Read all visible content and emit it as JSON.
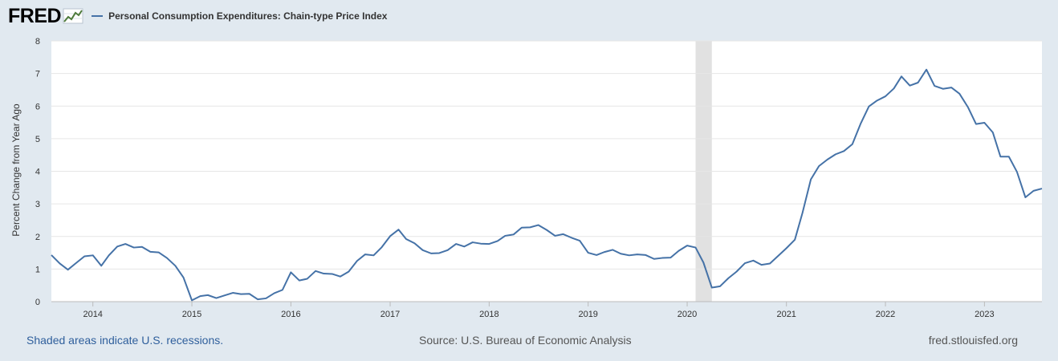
{
  "header": {
    "logo_text": "FRED",
    "legend_label": "Personal Consumption Expenditures: Chain-type Price Index",
    "series_color": "#4572a7"
  },
  "footer": {
    "recession_note": "Shaded areas indicate U.S. recessions.",
    "source": "Source: U.S. Bureau of Economic Analysis",
    "site": "fred.stlouisfed.org"
  },
  "chart_data": {
    "type": "line",
    "title": "",
    "xlabel": "",
    "ylabel": "Percent Change from Year Ago",
    "xlim": [
      "2013-08-01",
      "2023-08-01"
    ],
    "ylim": [
      0,
      8
    ],
    "yticks": [
      0,
      1,
      2,
      3,
      4,
      5,
      6,
      7,
      8
    ],
    "xticks": [
      "2014",
      "2015",
      "2016",
      "2017",
      "2018",
      "2019",
      "2020",
      "2021",
      "2022",
      "2023"
    ],
    "grid": "horizontal",
    "recessions": [
      {
        "start": "2020-02-01",
        "end": "2020-04-01"
      }
    ],
    "series": [
      {
        "name": "Personal Consumption Expenditures: Chain-type Price Index",
        "color": "#4572a7",
        "start": "2013-08-01",
        "frequency": "monthly",
        "values": [
          1.43,
          1.17,
          0.98,
          1.19,
          1.39,
          1.42,
          1.1,
          1.42,
          1.69,
          1.77,
          1.66,
          1.68,
          1.53,
          1.51,
          1.34,
          1.1,
          0.74,
          0.04,
          0.17,
          0.2,
          0.11,
          0.19,
          0.27,
          0.23,
          0.24,
          0.07,
          0.1,
          0.26,
          0.36,
          0.9,
          0.65,
          0.7,
          0.94,
          0.86,
          0.85,
          0.77,
          0.92,
          1.25,
          1.45,
          1.42,
          1.67,
          2.01,
          2.21,
          1.92,
          1.79,
          1.58,
          1.48,
          1.49,
          1.58,
          1.77,
          1.69,
          1.82,
          1.78,
          1.77,
          1.86,
          2.02,
          2.06,
          2.27,
          2.28,
          2.35,
          2.2,
          2.02,
          2.07,
          1.96,
          1.87,
          1.5,
          1.43,
          1.52,
          1.59,
          1.47,
          1.42,
          1.45,
          1.43,
          1.31,
          1.34,
          1.35,
          1.56,
          1.72,
          1.66,
          1.2,
          0.43,
          0.47,
          0.72,
          0.92,
          1.18,
          1.26,
          1.13,
          1.17,
          1.4,
          1.64,
          1.9,
          2.72,
          3.75,
          4.16,
          4.36,
          4.52,
          4.62,
          4.83,
          5.45,
          5.99,
          6.17,
          6.3,
          6.54,
          6.91,
          6.63,
          6.72,
          7.12,
          6.62,
          6.53,
          6.57,
          6.38,
          5.97,
          5.45,
          5.49,
          5.19,
          4.45,
          4.45,
          3.98,
          3.2,
          3.4,
          3.47
        ]
      }
    ]
  }
}
